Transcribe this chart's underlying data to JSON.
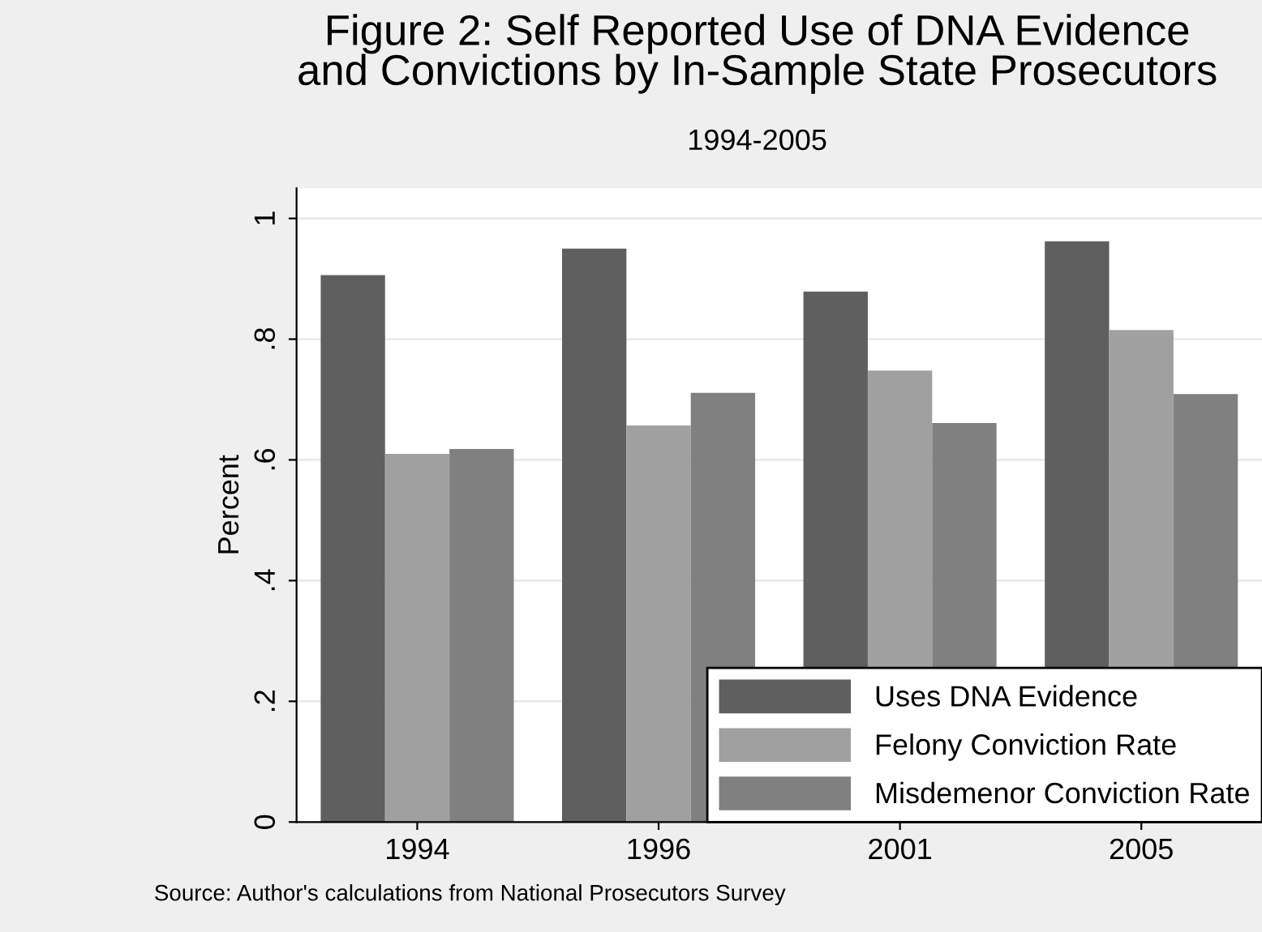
{
  "chart_data": {
    "type": "bar",
    "title": "Figure 2: Self Reported Use of DNA Evidence\nand Convictions by In-Sample State Prosecutors",
    "subtitle": "1994-2005",
    "ylabel": "Percent",
    "categories": [
      "1994",
      "1996",
      "2001",
      "2005"
    ],
    "series": [
      {
        "name": "Uses DNA Evidence",
        "color": "#5f5f5f",
        "values": [
          0.906,
          0.95,
          0.879,
          0.962
        ]
      },
      {
        "name": "Felony Conviction Rate",
        "color": "#a0a0a0",
        "values": [
          0.61,
          0.657,
          0.748,
          0.815
        ]
      },
      {
        "name": "Misdemenor Conviction Rate",
        "color": "#808080",
        "values": [
          0.618,
          0.711,
          0.661,
          0.709
        ]
      }
    ],
    "ylim": [
      0,
      1.05
    ],
    "yticks": [
      {
        "value": 0,
        "label": "0"
      },
      {
        "value": 0.2,
        "label": ".2"
      },
      {
        "value": 0.4,
        "label": ".4"
      },
      {
        "value": 0.6,
        "label": ".6"
      },
      {
        "value": 0.8,
        "label": ".8"
      },
      {
        "value": 1,
        "label": "1"
      }
    ],
    "grid": "y",
    "legend": "bottom right",
    "annotations": [
      "Source: Author's calculations from National Prosecutors Survey"
    ]
  }
}
